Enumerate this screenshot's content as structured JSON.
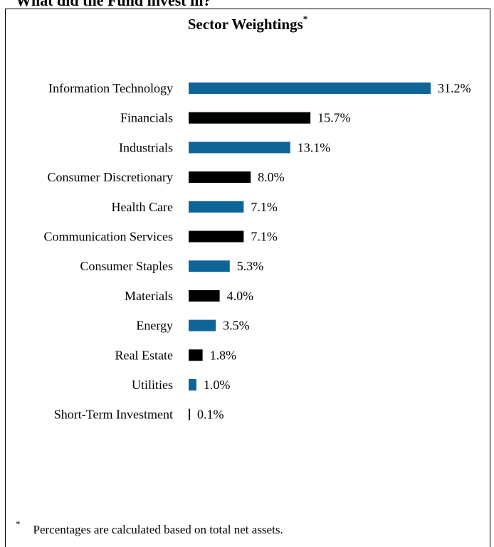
{
  "heading": "What did the Fund invest in?",
  "chart_data": {
    "type": "bar",
    "orientation": "horizontal",
    "title": "Sector Weightings",
    "title_marker": "*",
    "xlabel": "",
    "ylabel": "",
    "xlim": [
      0,
      31.2
    ],
    "grid": false,
    "colors": [
      "#0f6597",
      "#000000"
    ],
    "categories": [
      "Information Technology",
      "Financials",
      "Industrials",
      "Consumer Discretionary",
      "Health Care",
      "Communication Services",
      "Consumer Staples",
      "Materials",
      "Energy",
      "Real Estate",
      "Utilities",
      "Short-Term Investment"
    ],
    "values": [
      31.2,
      15.7,
      13.1,
      8.0,
      7.1,
      7.1,
      5.3,
      4.0,
      3.5,
      1.8,
      1.0,
      0.1
    ],
    "data_labels": [
      "31.2%",
      "15.7%",
      "13.1%",
      "8.0%",
      "7.1%",
      "7.1%",
      "5.3%",
      "4.0%",
      "3.5%",
      "1.8%",
      "1.0%",
      "0.1%"
    ]
  },
  "footnote": {
    "marker": "*",
    "text": "Percentages are calculated based on total net assets."
  }
}
